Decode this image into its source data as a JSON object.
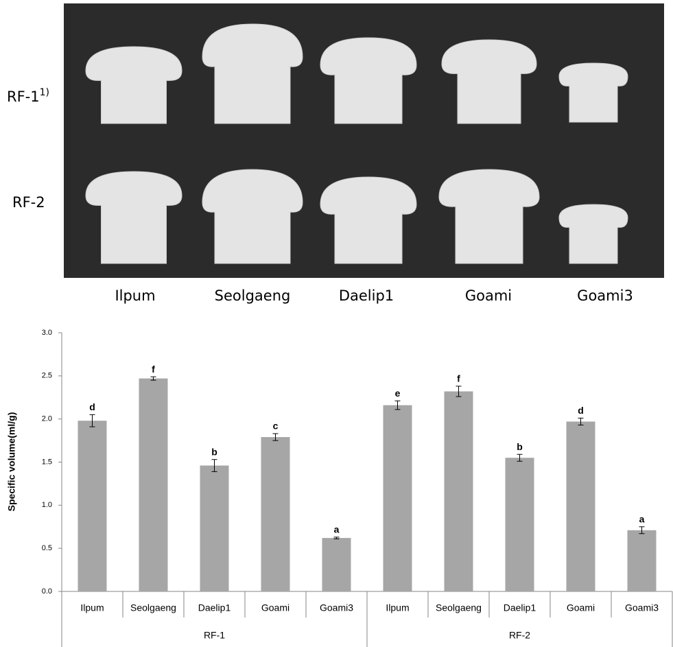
{
  "photo": {
    "row_labels": [
      "RF-1",
      "RF-2"
    ],
    "row_label_note": "1)",
    "column_labels": [
      "Ilpum",
      "Seolgaeng",
      "Daelip1",
      "Goami",
      "Goami3"
    ]
  },
  "chart_data": {
    "type": "bar",
    "y_axis_label": "Specific volume(ml/g)",
    "categories": [
      "Ilpum",
      "Seolgaeng",
      "Daelip1",
      "Goami",
      "Goami3",
      "Ilpum",
      "Seolgaeng",
      "Daelip1",
      "Goami",
      "Goami3"
    ],
    "groups": [
      "RF-1",
      "RF-2"
    ],
    "values": [
      1.98,
      2.47,
      1.46,
      1.79,
      0.62,
      2.16,
      2.32,
      1.55,
      1.97,
      0.71
    ],
    "errors": [
      0.07,
      0.02,
      0.07,
      0.04,
      0.01,
      0.05,
      0.06,
      0.04,
      0.04,
      0.04
    ],
    "annotations": [
      "d",
      "f",
      "b",
      "c",
      "a",
      "e",
      "f",
      "b",
      "d",
      "a"
    ],
    "color": "#a6a6a6",
    "ylim": [
      0,
      3
    ],
    "yticks": [
      {
        "value": 0,
        "label": "0.0"
      },
      {
        "value": 0.5,
        "label": "0.5"
      },
      {
        "value": 1,
        "label": "1.0"
      },
      {
        "value": 1.5,
        "label": "1.5"
      },
      {
        "value": 2,
        "label": "2.0"
      },
      {
        "value": 2.5,
        "label": "2.5"
      },
      {
        "value": 3,
        "label": "3.0"
      }
    ],
    "grid": false
  }
}
